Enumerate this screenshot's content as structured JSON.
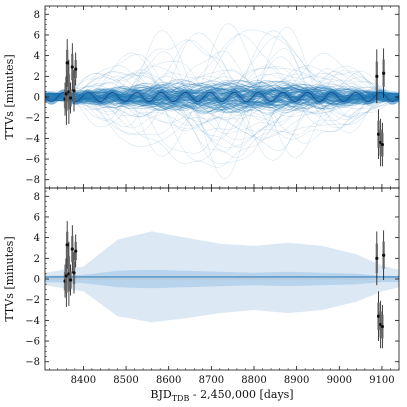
{
  "chart_data": [
    {
      "panel": "top",
      "type": "line",
      "ylabel": "TTVs [minutes]",
      "xlim": [
        8310,
        9140
      ],
      "ylim": [
        -8.8,
        8.8
      ],
      "yticks": [
        -8,
        -6,
        -4,
        -2,
        0,
        2,
        4,
        6,
        8
      ],
      "ytick_labels": [
        "−8",
        "−6",
        "−4",
        "−2",
        "0",
        "2",
        "4",
        "6",
        "8"
      ],
      "grid": false,
      "reference_line": 0,
      "observations": {
        "x": [
          8357,
          8360,
          8362,
          8366,
          8370,
          8374,
          8378,
          8382,
          9088,
          9092,
          9097,
          9101,
          9104
        ],
        "y": [
          -0.2,
          0.3,
          3.3,
          0.5,
          -0.1,
          2.9,
          0.6,
          2.7,
          2.0,
          -3.6,
          -4.4,
          -4.6,
          2.3
        ],
        "err": [
          1.6,
          3.0,
          2.3,
          3.1,
          1.5,
          2.3,
          2.0,
          1.6,
          2.6,
          2.4,
          2.3,
          2.1,
          2.4
        ]
      },
      "model": {
        "description_for_render": "many posterior draws, oscillating about 0 with widest spread mid-range",
        "central_amplitude": 0.5,
        "spread_max": 7.8
      },
      "colors": {
        "draws": "#1f77b4",
        "median": "#1a4a8a",
        "points": "#111111",
        "errorbars": "#555555"
      }
    },
    {
      "panel": "bottom",
      "type": "area",
      "xlabel": "BJD",
      "xlabel_sub": "TDB",
      "xlabel_tail": " - 2,450,000 [days]",
      "ylabel": "TTVs [minutes]",
      "xlim": [
        8310,
        9140
      ],
      "ylim": [
        -8.8,
        8.8
      ],
      "xticks": [
        8400,
        8500,
        8600,
        8700,
        8800,
        8900,
        9000,
        9100
      ],
      "xtick_labels": [
        "8400",
        "8500",
        "8600",
        "8700",
        "8800",
        "8900",
        "9000",
        "9100"
      ],
      "yticks": [
        -8,
        -6,
        -4,
        -2,
        0,
        2,
        4,
        6,
        8
      ],
      "ytick_labels": [
        "−8",
        "−6",
        "−4",
        "−2",
        "0",
        "2",
        "4",
        "6",
        "8"
      ],
      "grid": false,
      "reference_line": 0,
      "observations": {
        "x": [
          8357,
          8360,
          8362,
          8366,
          8370,
          8374,
          8378,
          8382,
          9088,
          9092,
          9097,
          9101,
          9104
        ],
        "y": [
          -0.2,
          0.3,
          3.3,
          0.5,
          -0.1,
          2.9,
          0.6,
          2.7,
          2.0,
          -3.6,
          -4.4,
          -4.6,
          2.3
        ],
        "err": [
          1.6,
          3.0,
          2.3,
          3.1,
          1.5,
          2.3,
          2.0,
          1.6,
          2.6,
          2.4,
          2.3,
          2.1,
          2.4
        ]
      },
      "band_2sigma": {
        "x": [
          8310,
          8400,
          8480,
          8560,
          8640,
          8720,
          8800,
          8880,
          8960,
          9040,
          9100,
          9140
        ],
        "lower": [
          -0.6,
          -1.2,
          -3.6,
          -4.2,
          -3.8,
          -3.3,
          -3.0,
          -3.3,
          -3.0,
          -2.2,
          -1.2,
          -0.8
        ],
        "upper": [
          0.6,
          1.2,
          3.8,
          4.6,
          4.0,
          3.4,
          3.2,
          3.5,
          3.2,
          2.4,
          1.3,
          0.9
        ]
      },
      "band_1sigma": {
        "x": [
          8310,
          8400,
          8480,
          8560,
          8640,
          8720,
          8800,
          8880,
          8960,
          9040,
          9100,
          9140
        ],
        "lower": [
          -0.3,
          -0.4,
          -0.8,
          -0.9,
          -0.8,
          -0.7,
          -0.6,
          -0.7,
          -0.6,
          -0.5,
          -0.3,
          -0.3
        ],
        "upper": [
          0.3,
          0.4,
          0.8,
          0.9,
          0.8,
          0.7,
          0.6,
          0.7,
          0.6,
          0.5,
          0.3,
          0.3
        ]
      },
      "median": {
        "x": [
          8310,
          9140
        ],
        "y": [
          0.2,
          0.2
        ]
      },
      "colors": {
        "band_2sigma": "#dce9f5",
        "band_1sigma": "#b8d3ec",
        "median": "#5f9ac9",
        "points": "#111111",
        "errorbars": "#555555"
      }
    }
  ]
}
